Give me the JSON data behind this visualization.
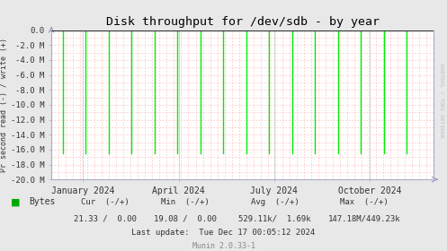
{
  "title": "Disk throughput for /dev/sdb - by year",
  "ylabel": "Pr second read (-) / write (+)",
  "bg_color": "#e8e8e8",
  "plot_bg_color": "#ffffff",
  "grid_color_minor": "#ffaaaa",
  "grid_color_major": "#cccccc",
  "ylim": [
    -20000000,
    0
  ],
  "ytick_labels": [
    "0.0",
    "-2.0 M",
    "-4.0 M",
    "-6.0 M",
    "-8.0 M",
    "-10.0 M",
    "-12.0 M",
    "-14.0 M",
    "-16.0 M",
    "-18.0 M",
    "-20.0 M"
  ],
  "ytick_values": [
    0,
    -2000000,
    -4000000,
    -6000000,
    -8000000,
    -10000000,
    -12000000,
    -14000000,
    -16000000,
    -18000000,
    -20000000
  ],
  "xtick_labels": [
    "January 2024",
    "April 2024",
    "July 2024",
    "October 2024"
  ],
  "xtick_values": [
    0.083,
    0.333,
    0.583,
    0.833
  ],
  "line_color": "#00ee00",
  "zero_line_color": "#333333",
  "arrow_color": "#9999bb",
  "spike_positions": [
    0.03,
    0.09,
    0.15,
    0.21,
    0.27,
    0.33,
    0.39,
    0.45,
    0.51,
    0.57,
    0.63,
    0.69,
    0.75,
    0.81,
    0.87,
    0.93
  ],
  "spike_depth": -16500000,
  "legend_color": "#00aa00",
  "legend_label": "Bytes",
  "footer_row1": "    Cur  (-/+)              Min  (-/+)            Avg  (-/+)                 Max  (-/+)",
  "footer_row2": "  21.33  /   0.00       19.08  /   0.00     529.11k/   1.69k       147.18M/449.23k",
  "footer_row3": "                  Last update:  Tue Dec 17 00:05:12 2024",
  "footer_munin": "Munin 2.0.33-1",
  "right_label": "RRDTOOL / TOBI OETIKER",
  "border_color": "#aaaacc"
}
